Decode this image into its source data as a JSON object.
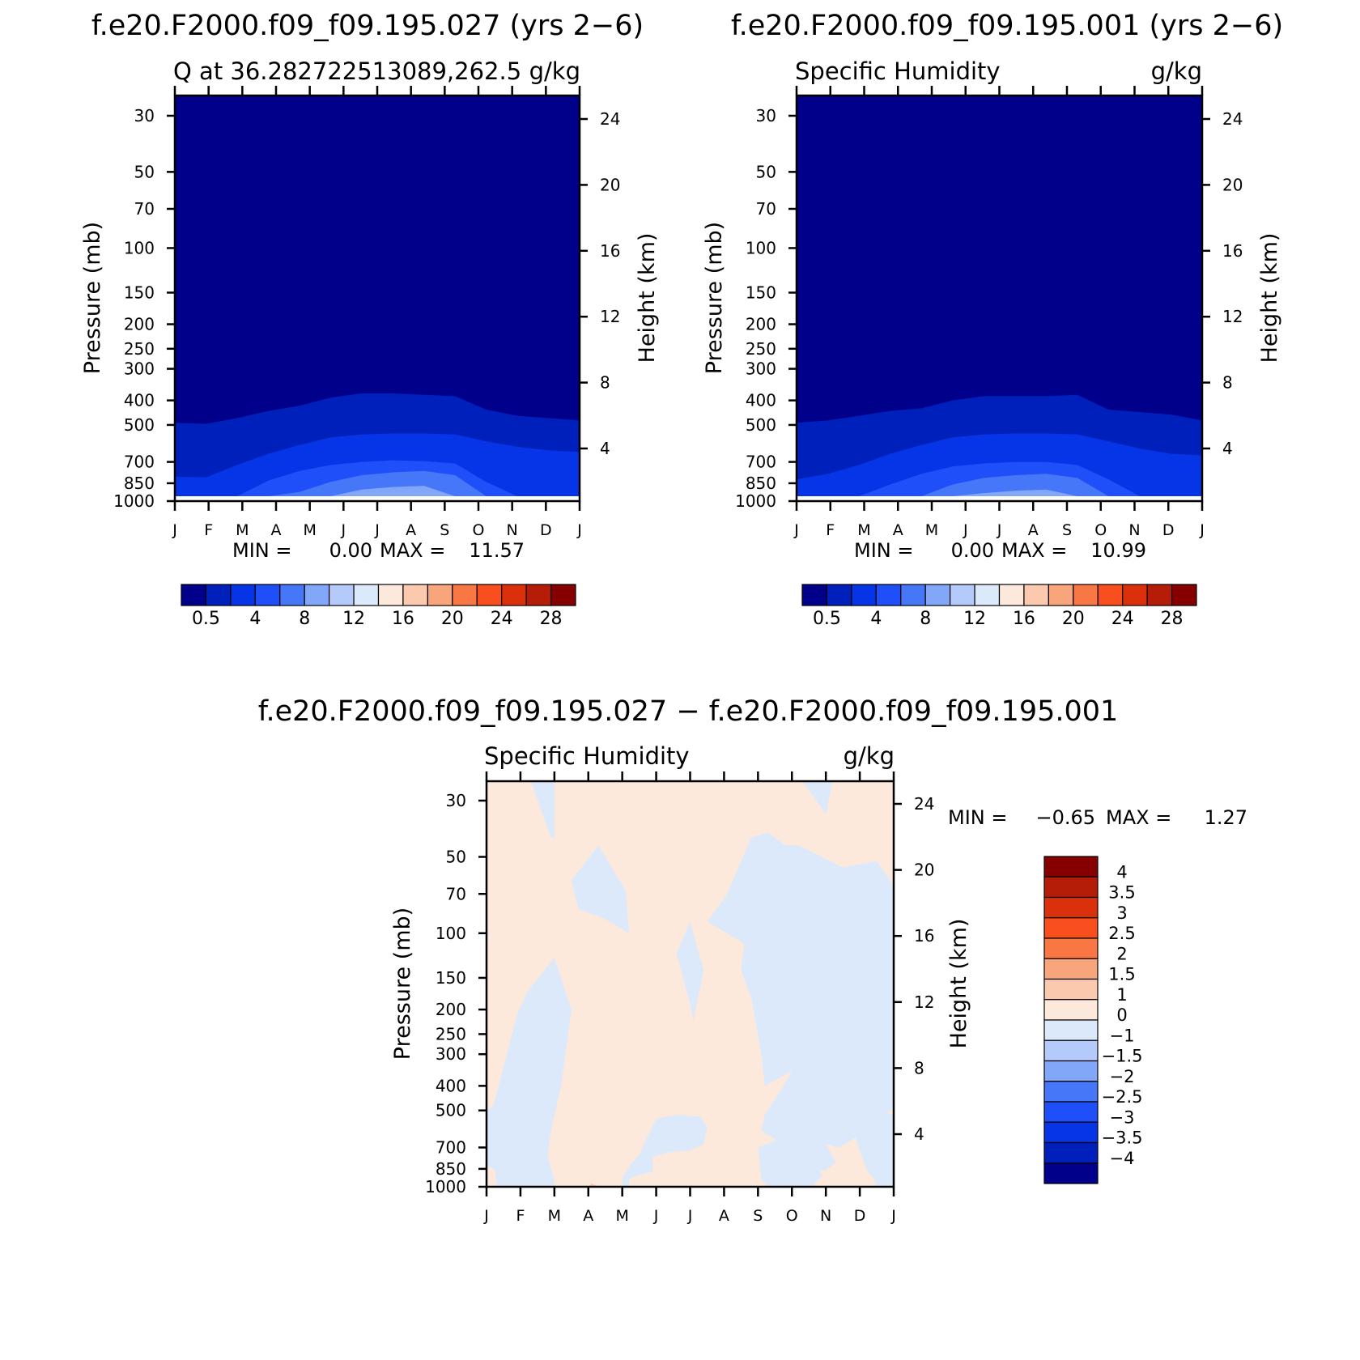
{
  "chart_data": [
    {
      "type": "heatmap",
      "title": "f.e20.F2000.f09_f09.195.027 (yrs 2−6)",
      "subtitle_left": "Q  at  36.28272251308​9,262.5",
      "subtitle_right": "g/kg",
      "xlabel": "",
      "ylabel": "Pressure (mb)",
      "ylabel_right": "Height (km)",
      "x_ticks": [
        "J",
        "F",
        "M",
        "A",
        "M",
        "J",
        "J",
        "A",
        "S",
        "O",
        "N",
        "D",
        "J"
      ],
      "y_ticks": [
        30,
        50,
        70,
        100,
        150,
        200,
        250,
        300,
        400,
        500,
        700,
        850,
        1000
      ],
      "y_right_ticks": [
        24,
        20,
        16,
        12,
        8,
        4
      ],
      "stats": {
        "min_label": "MIN =",
        "min": "0.00",
        "max_label": "MAX =",
        "max": "11.57"
      },
      "boundaries": [
        {
          "level": "0.5",
          "p": [
            490,
            495,
            470,
            440,
            420,
            390,
            375,
            375,
            380,
            385,
            435,
            460,
            470,
            480
          ]
        },
        {
          "level": "2",
          "p": [
            800,
            805,
            720,
            650,
            600,
            560,
            545,
            540,
            540,
            545,
            580,
            610,
            630,
            640
          ]
        },
        {
          "level": "4",
          "p": [
            1000,
            1000,
            960,
            830,
            760,
            720,
            700,
            690,
            695,
            710,
            840,
            1000,
            1000,
            1000
          ]
        },
        {
          "level": "6",
          "p": [
            1000,
            1000,
            1000,
            1000,
            920,
            840,
            790,
            770,
            760,
            790,
            1000,
            1000,
            1000,
            1000
          ]
        },
        {
          "level": "8",
          "p": [
            1000,
            1000,
            1000,
            1000,
            1000,
            970,
            900,
            880,
            870,
            960,
            1000,
            1000,
            1000,
            1000
          ]
        },
        {
          "level": "10",
          "p": [
            1000,
            1000,
            1000,
            1000,
            1000,
            1000,
            965,
            980,
            965,
            1000,
            1000,
            1000,
            1000,
            1000
          ]
        }
      ],
      "colorbar_labels": [
        "0.5",
        "4",
        "8",
        "12",
        "16",
        "20",
        "24",
        "28"
      ]
    },
    {
      "type": "heatmap",
      "title": "f.e20.F2000.f09_f09.195.001 (yrs 2−6)",
      "subtitle_left": "Specific Humidity",
      "subtitle_right": "g/kg",
      "xlabel": "",
      "ylabel": "Pressure (mb)",
      "ylabel_right": "Height (km)",
      "x_ticks": [
        "J",
        "F",
        "M",
        "A",
        "M",
        "J",
        "J",
        "A",
        "S",
        "O",
        "N",
        "D",
        "J"
      ],
      "y_ticks": [
        30,
        50,
        70,
        100,
        150,
        200,
        250,
        300,
        400,
        500,
        700,
        850,
        1000
      ],
      "y_right_ticks": [
        24,
        20,
        16,
        12,
        8,
        4
      ],
      "stats": {
        "min_label": "MIN =",
        "min": "0.00",
        "max_label": "MAX =",
        "max": "10.99"
      },
      "boundaries": [
        {
          "level": "0.5",
          "p": [
            490,
            480,
            460,
            440,
            430,
            400,
            385,
            385,
            385,
            380,
            435,
            445,
            455,
            480
          ]
        },
        {
          "level": "2",
          "p": [
            820,
            780,
            720,
            650,
            600,
            560,
            545,
            540,
            540,
            545,
            580,
            620,
            650,
            660
          ]
        },
        {
          "level": "4",
          "p": [
            1000,
            1000,
            1000,
            860,
            780,
            730,
            710,
            700,
            700,
            720,
            820,
            1000,
            1000,
            1000
          ]
        },
        {
          "level": "6",
          "p": [
            1000,
            1000,
            1000,
            1000,
            960,
            860,
            810,
            790,
            780,
            810,
            980,
            1000,
            1000,
            1000
          ]
        },
        {
          "level": "8",
          "p": [
            1000,
            1000,
            1000,
            1000,
            1000,
            980,
            930,
            910,
            900,
            980,
            1000,
            1000,
            1000,
            1000
          ]
        },
        {
          "level": "10",
          "p": [
            1000,
            1000,
            1000,
            1000,
            1000,
            1000,
            975,
            1000,
            990,
            1000,
            1000,
            1000,
            1000,
            1000
          ]
        }
      ],
      "colorbar_labels": [
        "0.5",
        "4",
        "8",
        "12",
        "16",
        "20",
        "24",
        "28"
      ]
    },
    {
      "type": "heatmap",
      "title": "f.e20.F2000.f09_f09.195.027 − f.e20.F2000.f09_f09.195.001",
      "subtitle_left": "Specific Humidity",
      "subtitle_right": "g/kg",
      "xlabel": "",
      "ylabel": "Pressure (mb)",
      "ylabel_right": "Height (km)",
      "x_ticks": [
        "J",
        "F",
        "M",
        "A",
        "M",
        "J",
        "J",
        "A",
        "S",
        "O",
        "N",
        "D",
        "J"
      ],
      "y_ticks": [
        30,
        50,
        70,
        100,
        150,
        200,
        250,
        300,
        400,
        500,
        700,
        850,
        1000
      ],
      "y_right_ticks": [
        24,
        20,
        16,
        12,
        8,
        4
      ],
      "stats": {
        "min_label": "MIN =",
        "min": "−0.65",
        "max_label": "MAX =",
        "max": "1.27"
      },
      "background_range": "0 to 1",
      "negative_regions": [
        {
          "points": [
            [
              1.3,
              25
            ],
            [
              2.0,
              25
            ],
            [
              2.0,
              42
            ],
            [
              1.9,
              42
            ]
          ]
        },
        {
          "points": [
            [
              9.3,
              25
            ],
            [
              10.2,
              25
            ],
            [
              10.0,
              34
            ]
          ]
        },
        {
          "points": [
            [
              0,
              95
            ],
            [
              0.08,
              100
            ],
            [
              0,
              108
            ]
          ]
        },
        {
          "points": [
            [
              0,
              500
            ],
            [
              0.2,
              480
            ],
            [
              0.9,
              210
            ],
            [
              1.2,
              170
            ],
            [
              2.0,
              125
            ],
            [
              2.5,
              200
            ],
            [
              2.2,
              400
            ],
            [
              1.9,
              600
            ],
            [
              1.8,
              760
            ],
            [
              2.0,
              940
            ],
            [
              2.0,
              1000
            ],
            [
              0.3,
              1000
            ],
            [
              0.25,
              860
            ],
            [
              0,
              820
            ]
          ]
        },
        {
          "points": [
            [
              2.5,
              62
            ],
            [
              3.3,
              45
            ],
            [
              4.1,
              68
            ],
            [
              4.2,
              100
            ],
            [
              3.5,
              88
            ],
            [
              2.7,
              80
            ]
          ]
        },
        {
          "points": [
            [
              5.6,
              120
            ],
            [
              6.0,
              90
            ],
            [
              6.4,
              140
            ],
            [
              6.1,
              220
            ],
            [
              6.0,
              190
            ]
          ]
        },
        {
          "points": [
            [
              4.0,
              1000
            ],
            [
              4.0,
              920
            ],
            [
              4.3,
              800
            ],
            [
              4.5,
              750
            ],
            [
              4.7,
              650
            ],
            [
              5.0,
              540
            ],
            [
              5.6,
              520
            ],
            [
              6.3,
              530
            ],
            [
              6.5,
              580
            ],
            [
              6.4,
              680
            ],
            [
              6.0,
              720
            ],
            [
              5.4,
              730
            ],
            [
              4.9,
              760
            ],
            [
              4.9,
              870
            ],
            [
              4.5,
              900
            ],
            [
              4.2,
              930
            ],
            [
              4.2,
              1000
            ]
          ]
        },
        {
          "points": [
            [
              6.5,
              90
            ],
            [
              7.1,
              70
            ],
            [
              7.3,
              60
            ],
            [
              7.8,
              42
            ],
            [
              8.3,
              40
            ],
            [
              8.8,
              45
            ],
            [
              9.2,
              45
            ],
            [
              10.5,
              55
            ],
            [
              11.5,
              52
            ],
            [
              12.0,
              65
            ],
            [
              12.0,
              490
            ],
            [
              11.6,
              530
            ],
            [
              11.2,
              600
            ],
            [
              10.4,
              700
            ],
            [
              10.0,
              680
            ],
            [
              10.3,
              800
            ],
            [
              10.0,
              860
            ],
            [
              9.5,
              860
            ],
            [
              8.9,
              700
            ],
            [
              8.1,
              600
            ],
            [
              8.2,
              520
            ],
            [
              8.7,
              410
            ],
            [
              9.0,
              350
            ],
            [
              8.2,
              400
            ],
            [
              8.1,
              300
            ],
            [
              7.8,
              180
            ],
            [
              7.5,
              140
            ],
            [
              7.6,
              110
            ]
          ]
        },
        {
          "points": [
            [
              8.6,
              140
            ],
            [
              9.2,
              190
            ],
            [
              9.5,
              200
            ],
            [
              9.0,
              350
            ],
            [
              8.7,
              300
            ]
          ]
        },
        {
          "points": [
            [
              9.9,
              150
            ],
            [
              11.0,
              105
            ],
            [
              12.0,
              100
            ],
            [
              12.0,
              490
            ],
            [
              11.6,
              540
            ],
            [
              10.7,
              520
            ],
            [
              10.3,
              400
            ],
            [
              10.2,
              250
            ]
          ]
        },
        {
          "points": [
            [
              10.8,
              600
            ],
            [
              11.6,
              500
            ],
            [
              12.0,
              520
            ],
            [
              12.0,
              1000
            ],
            [
              11.5,
              1000
            ],
            [
              11.4,
              920
            ],
            [
              11.2,
              860
            ]
          ]
        },
        {
          "points": [
            [
              8.0,
              700
            ],
            [
              8.6,
              650
            ],
            [
              9.4,
              700
            ],
            [
              9.9,
              900
            ],
            [
              9.6,
              1000
            ],
            [
              8.3,
              1000
            ],
            [
              8.1,
              940
            ]
          ]
        }
      ],
      "positive_regions": [
        {
          "level": "1 to 1.5",
          "points": [
            [
              3.0,
              1000
            ],
            [
              3.1,
              970
            ],
            [
              3.3,
              1000
            ]
          ]
        }
      ],
      "colorbar_labels": [
        "4",
        "3.5",
        "3",
        "2.5",
        "2",
        "1.5",
        "1",
        "0",
        "−1",
        "−1.5",
        "−2",
        "−2.5",
        "−3",
        "−3.5",
        "−4"
      ]
    }
  ],
  "colors": {
    "abs_palette": [
      "#00008b",
      "#0020bb",
      "#0535e6",
      "#1e4ff8",
      "#4677f8",
      "#82a6f8",
      "#b3cafb",
      "#dbe9fb",
      "#fde9dc",
      "#fbc9ae",
      "#f9a57c",
      "#f97744",
      "#f94f1f",
      "#db300c",
      "#b51d08",
      "#870000"
    ],
    "diff_palette": [
      "#870000",
      "#b51d08",
      "#db300c",
      "#f94f1f",
      "#f97744",
      "#f9a57c",
      "#fbc9ae",
      "#fde9dc",
      "#dbe9fb",
      "#b3cafb",
      "#82a6f8",
      "#4677f8",
      "#1e4ff8",
      "#0535e6",
      "#0020bb",
      "#00008b"
    ],
    "abs_fill": [
      "#00008b",
      "#0020bb",
      "#0535e6",
      "#1e4ff8",
      "#4677f8",
      "#82a6f8",
      "#b3cafb"
    ],
    "diff_positive": "#fde9dc",
    "diff_positive_strong": "#fbc9ae",
    "diff_negative": "#dbe9fb"
  }
}
